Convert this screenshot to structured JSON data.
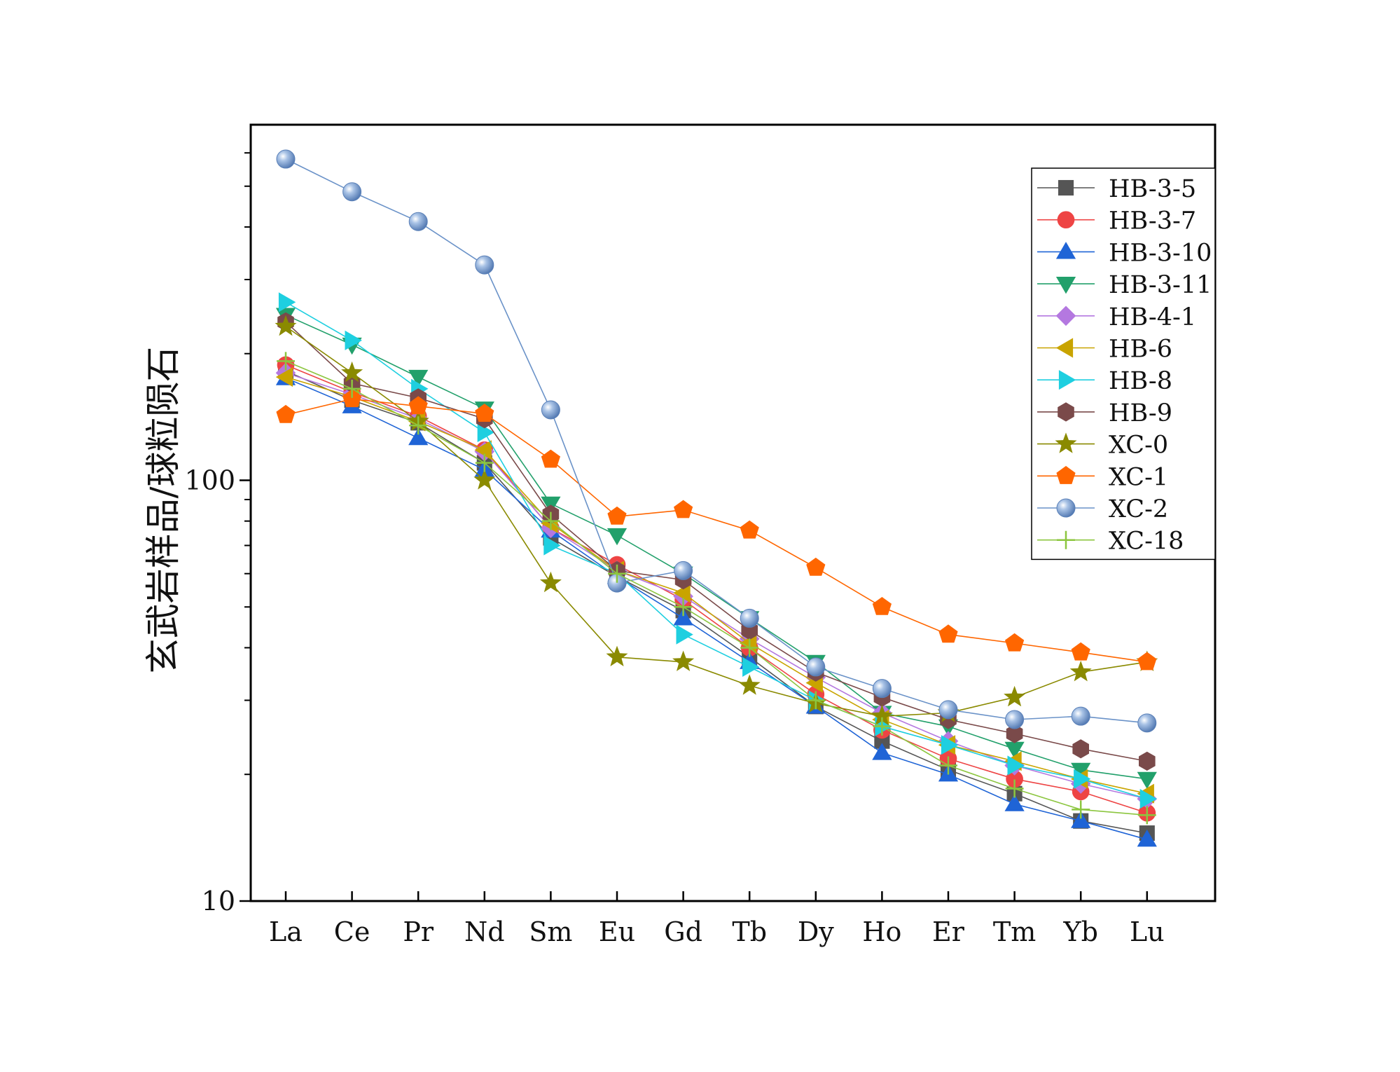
{
  "chart_data": {
    "type": "line",
    "title": "",
    "xlabel": "",
    "ylabel": "玄武岩样品/球粒陨石",
    "yscale": "log",
    "ylim": [
      10,
      700
    ],
    "y_tick_labels": [
      "10",
      "100"
    ],
    "y_tick_values": [
      10,
      100
    ],
    "categories": [
      "La",
      "Ce",
      "Pr",
      "Nd",
      "Sm",
      "Eu",
      "Gd",
      "Tb",
      "Dy",
      "Ho",
      "Er",
      "Tm",
      "Yb",
      "Lu"
    ],
    "legend_position": "top-right",
    "series": [
      {
        "name": "HB-3-5",
        "color": "#555555",
        "marker": "square",
        "values": [
          182,
          155,
          137,
          110,
          73,
          59,
          49,
          38,
          29,
          24,
          20.5,
          18,
          15.5,
          14.5
        ]
      },
      {
        "name": "HB-3-7",
        "color": "#ee4444",
        "marker": "circle",
        "values": [
          188,
          162,
          142,
          118,
          77,
          63,
          52,
          40,
          31,
          25.5,
          21.8,
          19.5,
          18.2,
          16.2
        ]
      },
      {
        "name": "HB-3-10",
        "color": "#1f64d6",
        "marker": "triangle-up",
        "values": [
          175,
          150,
          126,
          106,
          76,
          59,
          47,
          37,
          29,
          22.5,
          20,
          17,
          15.5,
          14
        ]
      },
      {
        "name": "HB-3-11",
        "color": "#22a06b",
        "marker": "triangle-down",
        "values": [
          247,
          210,
          176,
          148,
          88,
          74,
          60,
          47,
          37,
          28,
          26,
          23,
          20.5,
          19.5
        ]
      },
      {
        "name": "HB-4-1",
        "color": "#b478e0",
        "marker": "diamond",
        "values": [
          180,
          160,
          140,
          117,
          77,
          61,
          53,
          42,
          34,
          28,
          24,
          21,
          19,
          17.5
        ]
      },
      {
        "name": "HB-6",
        "color": "#c9a400",
        "marker": "triangle-left",
        "values": [
          176,
          158,
          138,
          118,
          79,
          61,
          54,
          41,
          33,
          27,
          23.5,
          21.5,
          19.5,
          18
        ]
      },
      {
        "name": "HB-8",
        "color": "#1ecfe0",
        "marker": "triangle-right",
        "values": [
          265,
          215,
          165,
          130,
          70,
          60,
          43,
          36,
          30,
          26,
          23.5,
          21,
          19.5,
          17.5
        ]
      },
      {
        "name": "HB-9",
        "color": "#7a4a4a",
        "marker": "hexagon",
        "values": [
          238,
          170,
          157,
          140,
          83,
          61,
          58,
          44,
          35,
          30.5,
          27,
          25,
          23,
          21.5
        ]
      },
      {
        "name": "XC-0",
        "color": "#8a8a00",
        "marker": "star",
        "values": [
          232,
          180,
          138,
          100,
          57,
          38,
          37,
          32.5,
          29.5,
          27.5,
          28,
          30.5,
          35,
          37
        ]
      },
      {
        "name": "XC-1",
        "color": "#ff6600",
        "marker": "pentagon",
        "values": [
          143,
          156,
          150,
          144,
          112,
          82,
          85,
          76,
          62,
          50,
          43,
          41,
          39,
          37
        ]
      },
      {
        "name": "XC-2",
        "color": "#6a92c8",
        "marker": "sphere",
        "values": [
          580,
          485,
          412,
          325,
          147,
          57,
          61,
          47,
          36,
          32,
          28.5,
          27,
          27.5,
          26.5
        ]
      },
      {
        "name": "XC-18",
        "color": "#8cc63f",
        "marker": "plus",
        "values": [
          192,
          165,
          135,
          110,
          80,
          60,
          50,
          40,
          30,
          26,
          21,
          18.5,
          16.5,
          16
        ]
      }
    ]
  }
}
